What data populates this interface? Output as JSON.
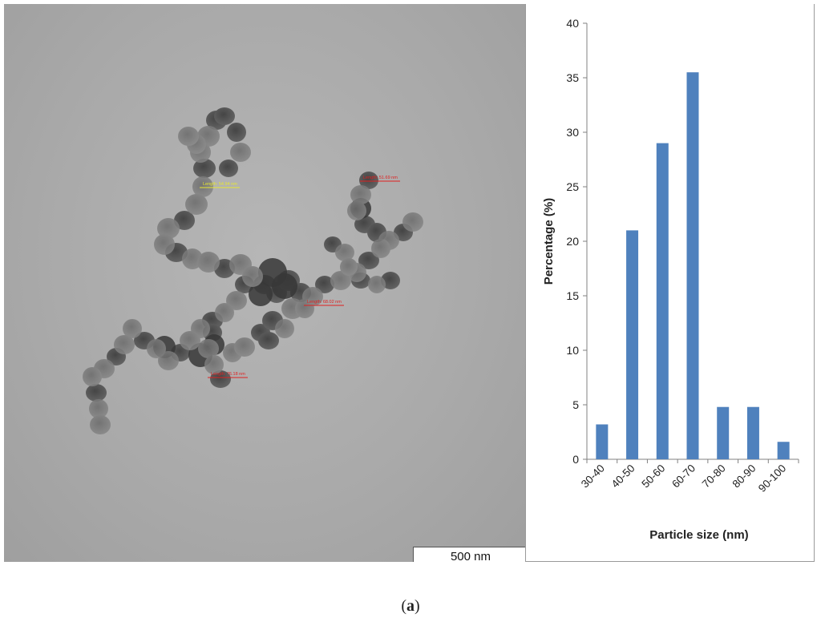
{
  "figure": {
    "caption_open": "(",
    "caption_letter": "a",
    "caption_close": ")"
  },
  "tem": {
    "scale_bar_label": "500 nm",
    "measurement_labels": [
      "Length: 54.94 nm",
      "Length: 51.69 nm",
      "Length: 68.02 nm",
      "Length: 76.18 nm"
    ]
  },
  "colors": {
    "bar": "#4f81bd",
    "axis": "#808080",
    "label_red": "#e02020",
    "label_yellow": "#e8e830"
  },
  "chart_data": {
    "type": "bar",
    "categories": [
      "30-40",
      "40-50",
      "50-60",
      "60-70",
      "70-80",
      "80-90",
      "90-100"
    ],
    "values": [
      3.2,
      21,
      29,
      35.5,
      4.8,
      4.8,
      1.6
    ],
    "title": "",
    "xlabel": "Particle size (nm)",
    "ylabel": "Percentage (%)",
    "ylim": [
      0,
      40
    ],
    "yticks": [
      0,
      5,
      10,
      15,
      20,
      25,
      30,
      35,
      40
    ],
    "grid": false,
    "legend": "none"
  }
}
